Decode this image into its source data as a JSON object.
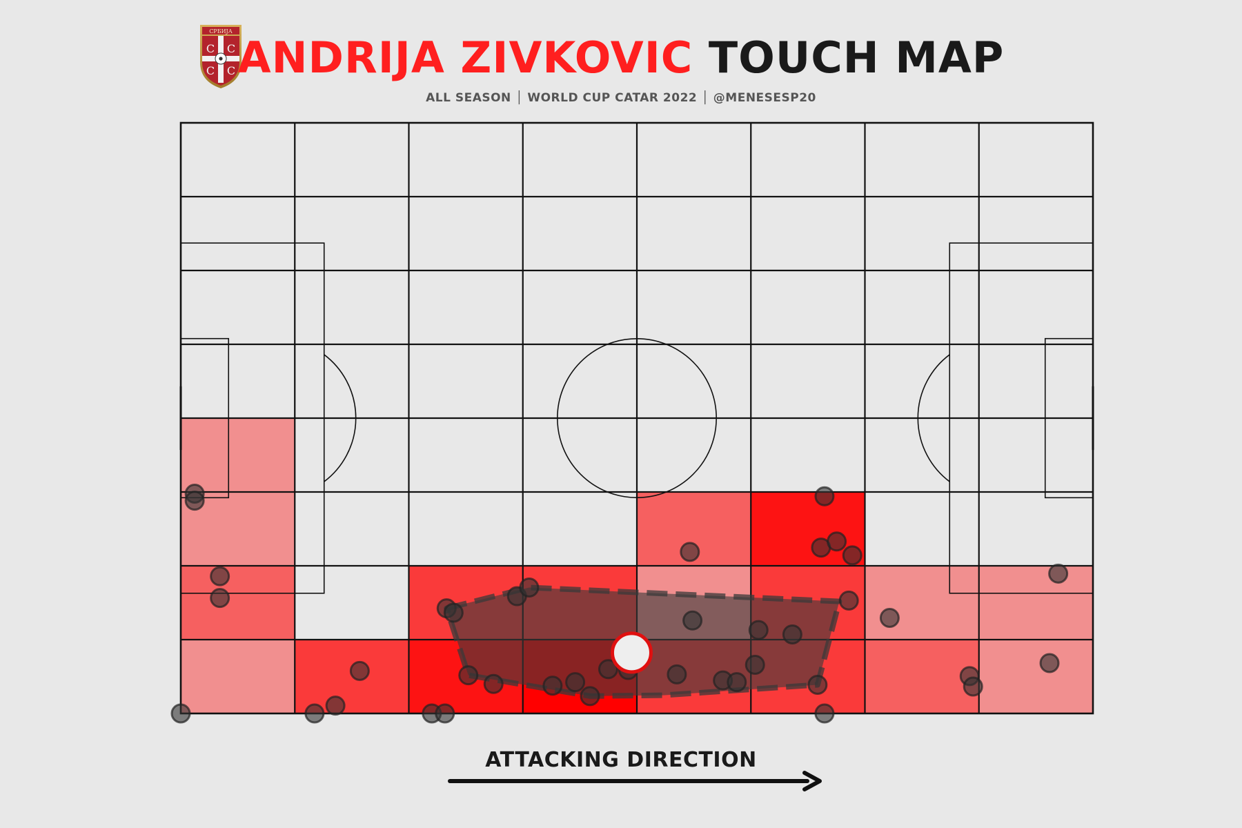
{
  "header": {
    "title_name": "ANDRIJA ZIVKOVIC",
    "title_suffix": "TOUCH MAP",
    "subtitle": "ALL SEASON │ WORLD CUP CATAR 2022 │ @MENESESP20",
    "title_color": "#ff1f1f",
    "crest_text": "СРБИЈА"
  },
  "footer": {
    "direction_label": "ATTACKING DIRECTION"
  },
  "colors": {
    "background": "#e8e8e8",
    "line": "#111111",
    "heat": "#ff0000",
    "dots": "#333333",
    "hull": "#3a3a3a",
    "centroid_edge": "#e01010"
  },
  "chart_data": {
    "type": "heatmap",
    "pitch": {
      "length": 105,
      "width": 68,
      "grid_cols": 8,
      "grid_rows": 8
    },
    "heatmap_cells": [
      {
        "col": 0,
        "row": 4,
        "level": 0.25
      },
      {
        "col": 0,
        "row": 5,
        "level": 0.25
      },
      {
        "col": 0,
        "row": 6,
        "level": 0.5
      },
      {
        "col": 0,
        "row": 7,
        "level": 0.25
      },
      {
        "col": 1,
        "row": 7,
        "level": 0.7
      },
      {
        "col": 2,
        "row": 6,
        "level": 0.7
      },
      {
        "col": 2,
        "row": 7,
        "level": 0.9
      },
      {
        "col": 3,
        "row": 6,
        "level": 0.7
      },
      {
        "col": 3,
        "row": 7,
        "level": 1.0
      },
      {
        "col": 4,
        "row": 5,
        "level": 0.5
      },
      {
        "col": 4,
        "row": 6,
        "level": 0.25
      },
      {
        "col": 4,
        "row": 7,
        "level": 0.7
      },
      {
        "col": 5,
        "row": 5,
        "level": 0.9
      },
      {
        "col": 5,
        "row": 6,
        "level": 0.7
      },
      {
        "col": 5,
        "row": 7,
        "level": 0.7
      },
      {
        "col": 6,
        "row": 6,
        "level": 0.25
      },
      {
        "col": 6,
        "row": 7,
        "level": 0.5
      },
      {
        "col": 7,
        "row": 6,
        "level": 0.25
      },
      {
        "col": 7,
        "row": 7,
        "level": 0.25
      }
    ],
    "touches": [
      [
        1.6,
        25.3
      ],
      [
        1.6,
        24.5
      ],
      [
        4.5,
        15.8
      ],
      [
        4.5,
        13.3
      ],
      [
        0.0,
        0.0
      ],
      [
        15.4,
        0.0
      ],
      [
        17.8,
        0.9
      ],
      [
        20.6,
        4.9
      ],
      [
        28.9,
        0.0
      ],
      [
        30.4,
        0.0
      ],
      [
        30.6,
        12.1
      ],
      [
        31.4,
        11.6
      ],
      [
        33.1,
        4.4
      ],
      [
        36.0,
        3.4
      ],
      [
        38.7,
        13.5
      ],
      [
        40.1,
        14.5
      ],
      [
        42.8,
        3.2
      ],
      [
        45.4,
        3.6
      ],
      [
        47.1,
        2.0
      ],
      [
        49.2,
        5.1
      ],
      [
        51.5,
        5.0
      ],
      [
        58.6,
        18.6
      ],
      [
        58.9,
        10.7
      ],
      [
        57.1,
        4.5
      ],
      [
        62.4,
        3.8
      ],
      [
        64.0,
        3.6
      ],
      [
        66.1,
        5.6
      ],
      [
        66.5,
        9.6
      ],
      [
        70.4,
        9.1
      ],
      [
        74.1,
        25.0
      ],
      [
        73.7,
        19.1
      ],
      [
        75.5,
        19.8
      ],
      [
        77.3,
        18.2
      ],
      [
        76.9,
        13.0
      ],
      [
        73.3,
        3.3
      ],
      [
        74.1,
        0.0
      ],
      [
        81.6,
        11.0
      ],
      [
        90.8,
        4.3
      ],
      [
        91.2,
        3.1
      ],
      [
        100.0,
        5.8
      ],
      [
        101.0,
        16.1
      ]
    ],
    "hull": [
      [
        30.6,
        12.1
      ],
      [
        40.1,
        14.5
      ],
      [
        75.8,
        12.9
      ],
      [
        73.3,
        3.3
      ],
      [
        55.6,
        2.1
      ],
      [
        47.1,
        2.0
      ],
      [
        33.1,
        4.4
      ]
    ],
    "centroid": [
      51.9,
      7.0
    ]
  }
}
